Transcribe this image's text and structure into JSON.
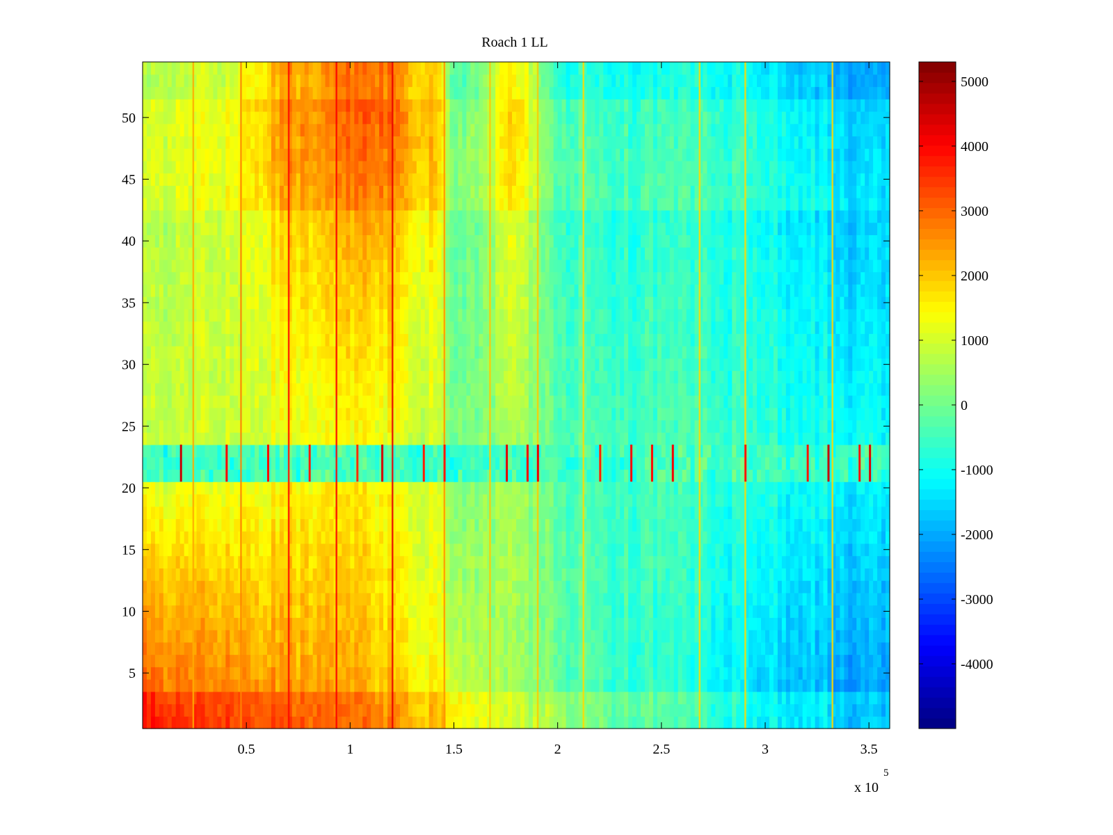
{
  "chart_data": {
    "type": "heatmap",
    "title": "Roach 1 LL",
    "xlabel": "",
    "ylabel": "",
    "xlim": [
      0,
      360000
    ],
    "ylim": [
      0.5,
      54.5
    ],
    "x_ticks": [
      50000,
      100000,
      150000,
      200000,
      250000,
      300000,
      350000
    ],
    "x_tick_labels": [
      "0.5",
      "1",
      "1.5",
      "2",
      "2.5",
      "3",
      "3.5"
    ],
    "x_exponent_label": "x 10",
    "x_exponent_power": "5",
    "y_ticks": [
      5,
      10,
      15,
      20,
      25,
      30,
      35,
      40,
      45,
      50
    ],
    "y_tick_labels": [
      "5",
      "10",
      "15",
      "20",
      "25",
      "30",
      "35",
      "40",
      "45",
      "50"
    ],
    "rows": 54,
    "colormap": "jet",
    "clim": [
      -5000,
      5300
    ],
    "colorbar_ticks": [
      5000,
      4000,
      3000,
      2000,
      1000,
      0,
      -1000,
      -2000,
      -3000,
      -4000
    ],
    "colorbar_tick_labels": [
      "5000",
      "4000",
      "3000",
      "2000",
      "1000",
      "0",
      "-1000",
      "-2000",
      "-3000",
      "-4000"
    ],
    "column_profile": {
      "x": [
        0,
        10000,
        25000,
        40000,
        55000,
        70000,
        85000,
        100000,
        115000,
        130000,
        142000,
        150000,
        165000,
        175000,
        185000,
        197000,
        210000,
        240000,
        270000,
        290000,
        310000,
        330000,
        345000,
        360000
      ],
      "upper_rows_value": [
        600,
        700,
        800,
        900,
        1500,
        2400,
        2300,
        2800,
        3000,
        2200,
        1800,
        -300,
        200,
        1600,
        1200,
        -600,
        -800,
        -1000,
        -1000,
        -1100,
        -1500,
        -1700,
        -2200,
        -2000
      ],
      "lower_rows_value": [
        3400,
        3100,
        3000,
        2900,
        2700,
        2600,
        2500,
        2400,
        2200,
        1800,
        1500,
        1100,
        700,
        500,
        300,
        100,
        -300,
        -700,
        -1100,
        -1500,
        -1800,
        -1900,
        -2400,
        -2200
      ]
    },
    "row_profile_note": "rows 21-23 are a noisy band with sparse vertical red spikes; a few strong vertical lines span all rows",
    "spike_lines_x": [
      24000,
      47000,
      70000,
      93000,
      120000,
      145000,
      167000,
      190000,
      212000,
      268000,
      290000,
      332000
    ],
    "band_spikes_x": [
      18000,
      40000,
      60000,
      80000,
      103000,
      115000,
      135000,
      145000,
      175000,
      185000,
      190000,
      220000,
      235000,
      245000,
      255000,
      290000,
      320000,
      330000,
      345000,
      350000
    ]
  }
}
